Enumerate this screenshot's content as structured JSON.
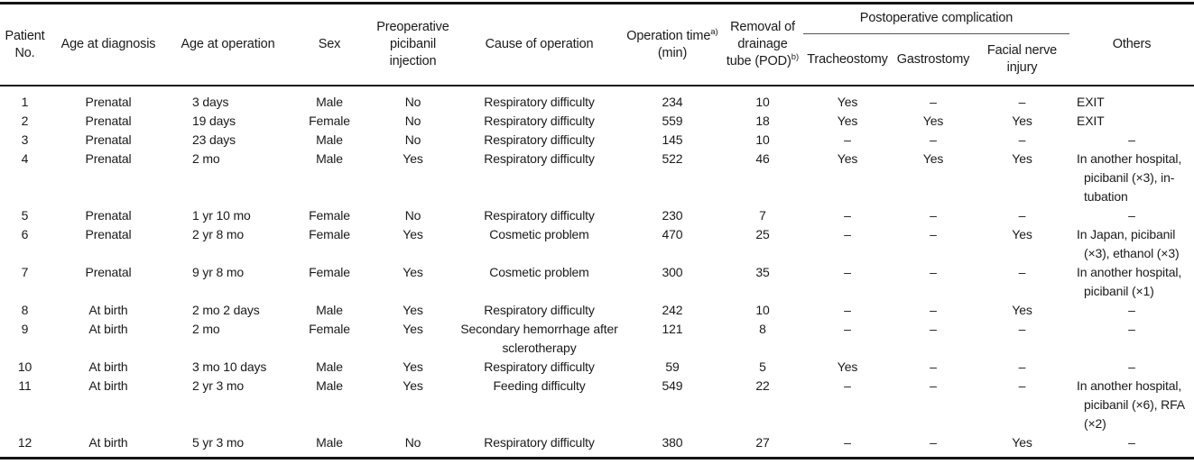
{
  "table": {
    "headers": {
      "patient_no": "Patient No.",
      "age_at_diagnosis": "Age at diagnosis",
      "age_at_operation": "Age at operation",
      "sex": "Sex",
      "preop_picibanil": "Preoperative picibanil injection",
      "cause_of_operation": "Cause of operation",
      "operation_time": "Operation time",
      "operation_time_sup": "a)",
      "operation_time_unit": "(min)",
      "removal_line1": "Removal of",
      "removal_line2": "drainage",
      "removal_line3": "tube (POD)",
      "removal_sup": "b)",
      "postop_group": "Postoperative complication",
      "tracheostomy": "Tracheostomy",
      "gastrostomy": "Gastrostomy",
      "facial_nerve_injury": "Facial nerve injury",
      "others": "Others"
    },
    "column_keys": [
      "no",
      "age_dx",
      "age_op",
      "sex",
      "picibanil",
      "cause",
      "time",
      "removal",
      "trach",
      "gastro",
      "facial",
      "others"
    ],
    "dash_char": "–",
    "text_color": "#1a1a1a",
    "rule_color": "#151515",
    "group_rule_color": "#555555",
    "rows": [
      {
        "no": "1",
        "age_dx": "Prenatal",
        "age_op": "3 days",
        "sex": "Male",
        "picibanil": "No",
        "cause": "Respiratory difficulty",
        "time": "234",
        "removal": "10",
        "trach": "Yes",
        "gastro": "–",
        "facial": "–",
        "others": "EXIT"
      },
      {
        "no": "2",
        "age_dx": "Prenatal",
        "age_op": "19 days",
        "sex": "Female",
        "picibanil": "No",
        "cause": "Respiratory difficulty",
        "time": "559",
        "removal": "18",
        "trach": "Yes",
        "gastro": "Yes",
        "facial": "Yes",
        "others": "EXIT"
      },
      {
        "no": "3",
        "age_dx": "Prenatal",
        "age_op": "23 days",
        "sex": "Male",
        "picibanil": "No",
        "cause": "Respiratory difficulty",
        "time": "145",
        "removal": "10",
        "trach": "–",
        "gastro": "–",
        "facial": "–",
        "others": "–"
      },
      {
        "no": "4",
        "age_dx": "Prenatal",
        "age_op": "2 mo",
        "sex": "Male",
        "picibanil": "Yes",
        "cause": "Respiratory difficulty",
        "time": "522",
        "removal": "46",
        "trach": "Yes",
        "gastro": "Yes",
        "facial": "Yes",
        "others": "In another hospital, picibanil (×3), in-tubation"
      },
      {
        "no": "5",
        "age_dx": "Prenatal",
        "age_op": "1 yr 10 mo",
        "sex": "Female",
        "picibanil": "No",
        "cause": "Respiratory difficulty",
        "time": "230",
        "removal": "7",
        "trach": "–",
        "gastro": "–",
        "facial": "–",
        "others": "–"
      },
      {
        "no": "6",
        "age_dx": "Prenatal",
        "age_op": "2 yr 8 mo",
        "sex": "Female",
        "picibanil": "Yes",
        "cause": "Cosmetic problem",
        "time": "470",
        "removal": "25",
        "trach": "–",
        "gastro": "–",
        "facial": "Yes",
        "others": "In Japan, picibanil (×3), ethanol (×3)"
      },
      {
        "no": "7",
        "age_dx": "Prenatal",
        "age_op": "9 yr 8 mo",
        "sex": "Female",
        "picibanil": "Yes",
        "cause": "Cosmetic problem",
        "time": "300",
        "removal": "35",
        "trach": "–",
        "gastro": "–",
        "facial": "–",
        "others": "In another hospital, picibanil (×1)"
      },
      {
        "no": "8",
        "age_dx": "At birth",
        "age_op": "2 mo 2 days",
        "sex": "Male",
        "picibanil": "Yes",
        "cause": "Respiratory difficulty",
        "time": "242",
        "removal": "10",
        "trach": "–",
        "gastro": "–",
        "facial": "Yes",
        "others": "–"
      },
      {
        "no": "9",
        "age_dx": "At birth",
        "age_op": "2 mo",
        "sex": "Female",
        "picibanil": "Yes",
        "cause": "Secondary hemorrhage after sclerotherapy",
        "time": "121",
        "removal": "8",
        "trach": "–",
        "gastro": "–",
        "facial": "–",
        "others": "–"
      },
      {
        "no": "10",
        "age_dx": "At birth",
        "age_op": "3 mo 10 days",
        "sex": "Male",
        "picibanil": "Yes",
        "cause": "Respiratory difficulty",
        "time": "59",
        "removal": "5",
        "trach": "Yes",
        "gastro": "–",
        "facial": "–",
        "others": "–"
      },
      {
        "no": "11",
        "age_dx": "At birth",
        "age_op": "2 yr 3 mo",
        "sex": "Male",
        "picibanil": "Yes",
        "cause": "Feeding difficulty",
        "time": "549",
        "removal": "22",
        "trach": "–",
        "gastro": "–",
        "facial": "–",
        "others": "In another hospital, picibanil (×6), RFA (×2)"
      },
      {
        "no": "12",
        "age_dx": "At birth",
        "age_op": "5 yr 3 mo",
        "sex": "Male",
        "picibanil": "No",
        "cause": "Respiratory difficulty",
        "time": "380",
        "removal": "27",
        "trach": "–",
        "gastro": "–",
        "facial": "Yes",
        "others": "–"
      }
    ]
  }
}
